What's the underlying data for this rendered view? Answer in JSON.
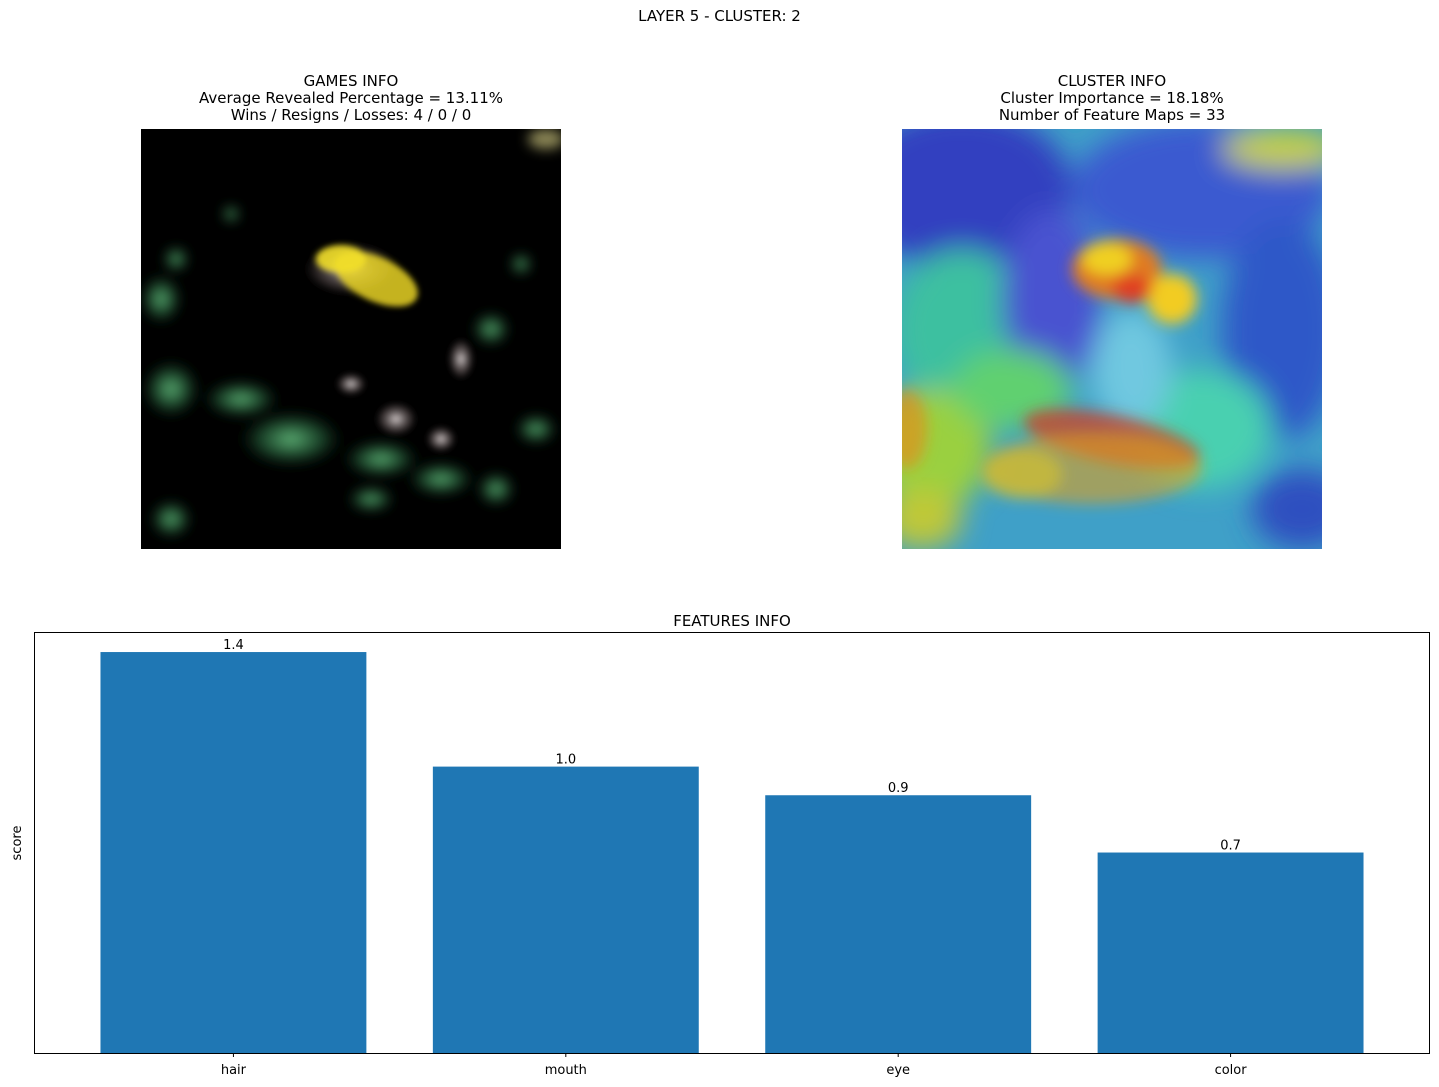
{
  "suptitle": "LAYER 5 - CLUSTER: 2",
  "games_info": {
    "title": "GAMES INFO",
    "line1": "Average Revealed Percentage = 13.11%",
    "line2": "Wins / Resigns / Losses: 4 / 0 / 0"
  },
  "cluster_info": {
    "title": "CLUSTER INFO",
    "line1": "Cluster Importance = 18.18%",
    "line2": "Number of Feature Maps = 33"
  },
  "colors": {
    "bar": "#1f77b4"
  },
  "chart_data": {
    "type": "bar",
    "title": "FEATURES INFO",
    "xlabel": "",
    "ylabel": "score",
    "categories": [
      "hair",
      "mouth",
      "eye",
      "color"
    ],
    "values": [
      1.4,
      1.0,
      0.9,
      0.7
    ],
    "value_labels": [
      "1.4",
      "1.0",
      "0.9",
      "0.7"
    ],
    "ylim": [
      0,
      1.47
    ],
    "yticks_visible": false,
    "grid": false
  }
}
